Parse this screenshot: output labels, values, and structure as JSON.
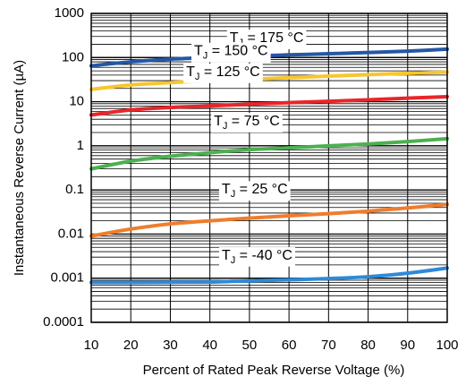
{
  "chart_data": {
    "type": "line",
    "xlabel": "Percent of Rated Peak Reverse Voltage (%)",
    "ylabel": "Instantaneous Reverse Current (µA)",
    "xlim": [
      10,
      100
    ],
    "ylim": [
      0.0001,
      1000
    ],
    "yscale": "log",
    "grid": true,
    "x_ticks": [
      "10",
      "20",
      "30",
      "40",
      "50",
      "60",
      "70",
      "80",
      "90",
      "100"
    ],
    "y_ticks": [
      "0.0001",
      "0.001",
      "0.01",
      "0.1",
      "1",
      "10",
      "100",
      "1000"
    ],
    "series": [
      {
        "name": "TJ = 175 °C",
        "label_main": "T",
        "label_sub": "J",
        "label_rest": " = 175 °C",
        "color": "#2457a5",
        "label_at": [
          45,
          270
        ],
        "x": [
          10,
          20,
          30,
          40,
          50,
          60,
          70,
          80,
          90,
          100
        ],
        "y": [
          65,
          80,
          92,
          100,
          108,
          115,
          122,
          130,
          140,
          155
        ]
      },
      {
        "name": "TJ = 150 °C",
        "label_main": "T",
        "label_sub": "J",
        "label_rest": " = 150 °C",
        "color": "#f7c62f",
        "label_at": [
          36,
          137
        ],
        "x": [
          10,
          20,
          30,
          40,
          50,
          60,
          70,
          80,
          90,
          100
        ],
        "y": [
          19,
          24,
          27,
          30,
          32,
          35,
          38,
          41,
          44,
          47
        ]
      },
      {
        "name": "TJ = 125 °C",
        "label_main": "T",
        "label_sub": "J",
        "label_rest": " = 125 °C",
        "color": "#e8262a",
        "label_at": [
          34,
          46
        ],
        "x": [
          10,
          20,
          30,
          40,
          50,
          60,
          70,
          80,
          90,
          100
        ],
        "y": [
          5,
          6.5,
          7.4,
          8,
          8.8,
          9.5,
          10.2,
          11,
          12,
          13
        ]
      },
      {
        "name": "TJ = 75 °C",
        "label_main": "T",
        "label_sub": "J",
        "label_rest": " = 75 °C",
        "color": "#4cb050",
        "label_at": [
          41,
          3.5
        ],
        "x": [
          10,
          20,
          30,
          40,
          50,
          60,
          70,
          80,
          90,
          100
        ],
        "y": [
          0.3,
          0.45,
          0.58,
          0.7,
          0.82,
          0.9,
          1.0,
          1.1,
          1.25,
          1.45
        ]
      },
      {
        "name": "TJ = 25 °C",
        "label_main": "T",
        "label_sub": "J",
        "label_rest": " = 25 °C",
        "color": "#ef7d2d",
        "label_at": [
          43,
          0.1
        ],
        "x": [
          10,
          20,
          30,
          40,
          50,
          60,
          70,
          80,
          90,
          100
        ],
        "y": [
          0.009,
          0.013,
          0.017,
          0.02,
          0.023,
          0.026,
          0.029,
          0.033,
          0.039,
          0.047
        ]
      },
      {
        "name": "TJ = -40 °C",
        "label_main": "T",
        "label_sub": "J",
        "label_rest": " = -40 °C",
        "color": "#2f89d8",
        "label_at": [
          43,
          0.0032
        ],
        "x": [
          10,
          20,
          30,
          40,
          50,
          60,
          70,
          80,
          90,
          100
        ],
        "y": [
          0.0008,
          0.0008,
          0.00081,
          0.00082,
          0.00087,
          0.00092,
          0.00098,
          0.00108,
          0.0013,
          0.0017
        ]
      }
    ]
  }
}
